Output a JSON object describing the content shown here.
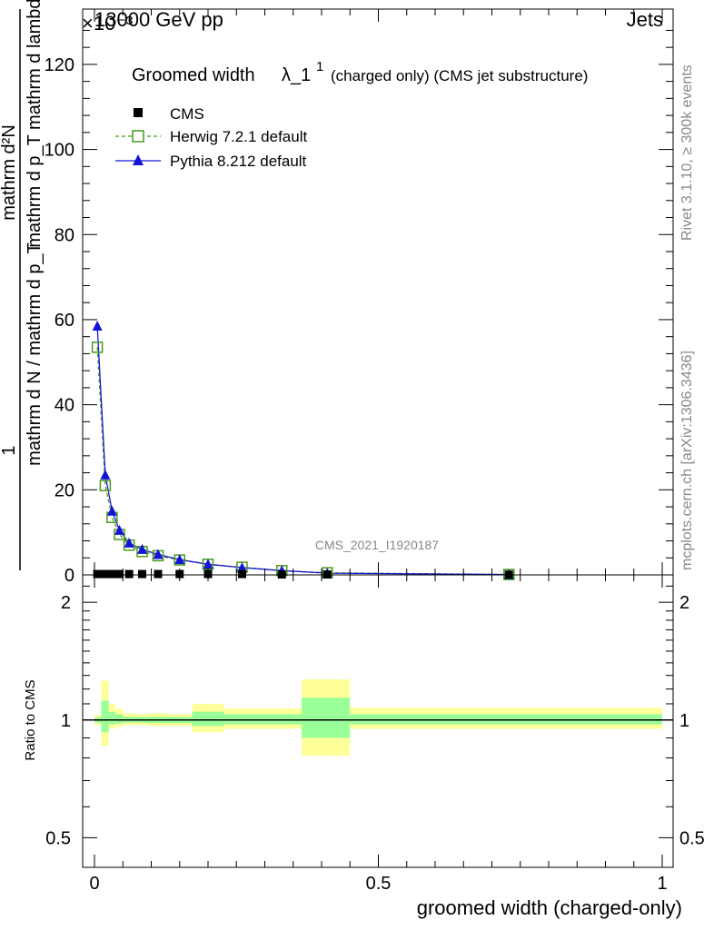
{
  "header": {
    "left": "13000 GeV pp",
    "right": "Jets",
    "exponent": "×10⁻³"
  },
  "side_labels": {
    "rivet": "Rivet 3.1.10, ≥ 300k events",
    "mcplots": "mcplots.cern.ch [arXiv:1306.3436]"
  },
  "watermark": "CMS_2021_I1920187",
  "colors": {
    "herwig": "#4a9a1c",
    "pythia": "#1414d6",
    "cms": "#000000",
    "band_outer": "#ffff99",
    "band_inner": "#99ff99"
  },
  "chart_data": [
    {
      "type": "line",
      "title": "Groomed width λ_1¹",
      "title_parts": {
        "main": "Groomed width",
        "lambda": "λ_1",
        "sup": "1",
        "suffix": "(charged only) (CMS jet substructure)"
      },
      "ylabel": {
        "top_num": "1",
        "top_den": "mathrm d N / mathrm d p_T",
        "top_den_sub": "T",
        "num": "mathrm d²N",
        "den": "mathrm d p_T mathrm d lambda",
        "den_sub": "T"
      },
      "xlim": [
        0,
        1
      ],
      "ylim": [
        0,
        133
      ],
      "y_ticks": [
        0,
        20,
        40,
        60,
        80,
        100,
        120
      ],
      "y_tick_labels": [
        "0",
        "20",
        "40",
        "60",
        "80",
        "100",
        "120"
      ],
      "y_multiplier": "×10⁻³",
      "legend": {
        "position": "top-left",
        "entries": [
          "CMS",
          "Herwig 7.2.1 default",
          "Pythia 8.212 default"
        ]
      },
      "series": [
        {
          "name": "CMS",
          "marker": "filled-square",
          "x": [
            0.005,
            0.019,
            0.031,
            0.044,
            0.061,
            0.084,
            0.112,
            0.15,
            0.2,
            0.26,
            0.33,
            0.41,
            0.73
          ],
          "y": [
            0.2,
            0.2,
            0.2,
            0.2,
            0.2,
            0.2,
            0.2,
            0.2,
            0.2,
            0.2,
            0.1,
            0.1,
            0.05
          ]
        },
        {
          "name": "Herwig 7.2.1 default",
          "marker": "open-square",
          "line": "dashed",
          "x": [
            0.005,
            0.019,
            0.031,
            0.044,
            0.061,
            0.084,
            0.112,
            0.15,
            0.2,
            0.26,
            0.33,
            0.41,
            0.73
          ],
          "y": [
            53.5,
            21.0,
            13.5,
            9.5,
            7.0,
            5.5,
            4.5,
            3.5,
            2.5,
            1.8,
            1.0,
            0.5,
            0.1
          ]
        },
        {
          "name": "Pythia 8.212 default",
          "marker": "filled-triangle",
          "line": "solid",
          "x": [
            0.005,
            0.019,
            0.031,
            0.044,
            0.061,
            0.084,
            0.112,
            0.15,
            0.2,
            0.26,
            0.33,
            0.41,
            0.73
          ],
          "y": [
            58.5,
            23.5,
            15.0,
            10.5,
            7.5,
            6.0,
            4.8,
            3.6,
            2.5,
            1.7,
            1.0,
            0.4,
            0.08
          ]
        }
      ]
    },
    {
      "type": "area",
      "ylabel": "Ratio to CMS",
      "xlabel": "groomed width (charged-only)",
      "xlim": [
        0,
        1
      ],
      "ylim": [
        0.42,
        2.35
      ],
      "log_y": true,
      "y_ticks": [
        0.5,
        1,
        2
      ],
      "y_tick_labels": [
        "0.5",
        "1",
        "2"
      ],
      "x_ticks": [
        0,
        0.5,
        1
      ],
      "x_tick_labels": [
        "0",
        "0.5",
        "1"
      ],
      "reference": 1,
      "bands": [
        {
          "x0": 0.0,
          "x1": 0.012,
          "outer": [
            0.97,
            1.03
          ],
          "inner": [
            0.985,
            1.015
          ]
        },
        {
          "x0": 0.012,
          "x1": 0.025,
          "outer": [
            0.86,
            1.26
          ],
          "inner": [
            0.93,
            1.12
          ]
        },
        {
          "x0": 0.025,
          "x1": 0.037,
          "outer": [
            0.95,
            1.1
          ],
          "inner": [
            0.975,
            1.05
          ]
        },
        {
          "x0": 0.037,
          "x1": 0.05,
          "outer": [
            0.96,
            1.07
          ],
          "inner": [
            0.98,
            1.035
          ]
        },
        {
          "x0": 0.05,
          "x1": 0.072,
          "outer": [
            0.97,
            1.04
          ],
          "inner": [
            0.985,
            1.02
          ]
        },
        {
          "x0": 0.072,
          "x1": 0.096,
          "outer": [
            0.97,
            1.035
          ],
          "inner": [
            0.985,
            1.018
          ]
        },
        {
          "x0": 0.096,
          "x1": 0.128,
          "outer": [
            0.965,
            1.04
          ],
          "inner": [
            0.982,
            1.02
          ]
        },
        {
          "x0": 0.128,
          "x1": 0.172,
          "outer": [
            0.965,
            1.035
          ],
          "inner": [
            0.982,
            1.018
          ]
        },
        {
          "x0": 0.172,
          "x1": 0.228,
          "outer": [
            0.93,
            1.1
          ],
          "inner": [
            0.965,
            1.05
          ]
        },
        {
          "x0": 0.228,
          "x1": 0.292,
          "outer": [
            0.95,
            1.07
          ],
          "inner": [
            0.975,
            1.035
          ]
        },
        {
          "x0": 0.292,
          "x1": 0.365,
          "outer": [
            0.95,
            1.07
          ],
          "inner": [
            0.975,
            1.035
          ]
        },
        {
          "x0": 0.365,
          "x1": 0.45,
          "outer": [
            0.81,
            1.27
          ],
          "inner": [
            0.9,
            1.14
          ]
        },
        {
          "x0": 0.45,
          "x1": 1.0,
          "outer": [
            0.95,
            1.075
          ],
          "inner": [
            0.975,
            1.035
          ]
        }
      ]
    }
  ]
}
